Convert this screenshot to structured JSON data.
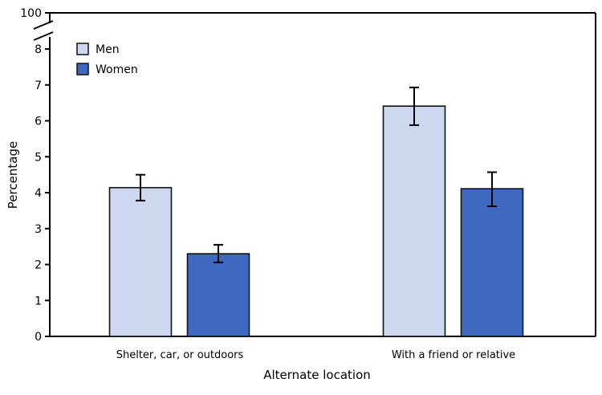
{
  "chart_data": {
    "type": "bar",
    "title": "",
    "xlabel": "Alternate location",
    "ylabel": "Percentage",
    "categories": [
      "Shelter, car, or outdoors",
      "With a friend or relative"
    ],
    "series": [
      {
        "name": "Men",
        "color": "#cdd7f0",
        "values": [
          4.14,
          6.41
        ],
        "ci_low": [
          3.78,
          5.88
        ],
        "ci_high": [
          4.5,
          6.93
        ]
      },
      {
        "name": "Women",
        "color": "#3f69c0",
        "values": [
          2.3,
          4.11
        ],
        "ci_low": [
          2.06,
          3.62
        ],
        "ci_high": [
          2.55,
          4.57
        ]
      }
    ],
    "yticks": [
      0,
      1,
      2,
      3,
      4,
      5,
      6,
      7,
      8,
      100
    ],
    "ylim": [
      0,
      100
    ],
    "axis_break": [
      8,
      100
    ],
    "grid": false,
    "legend_position": "top-left"
  }
}
